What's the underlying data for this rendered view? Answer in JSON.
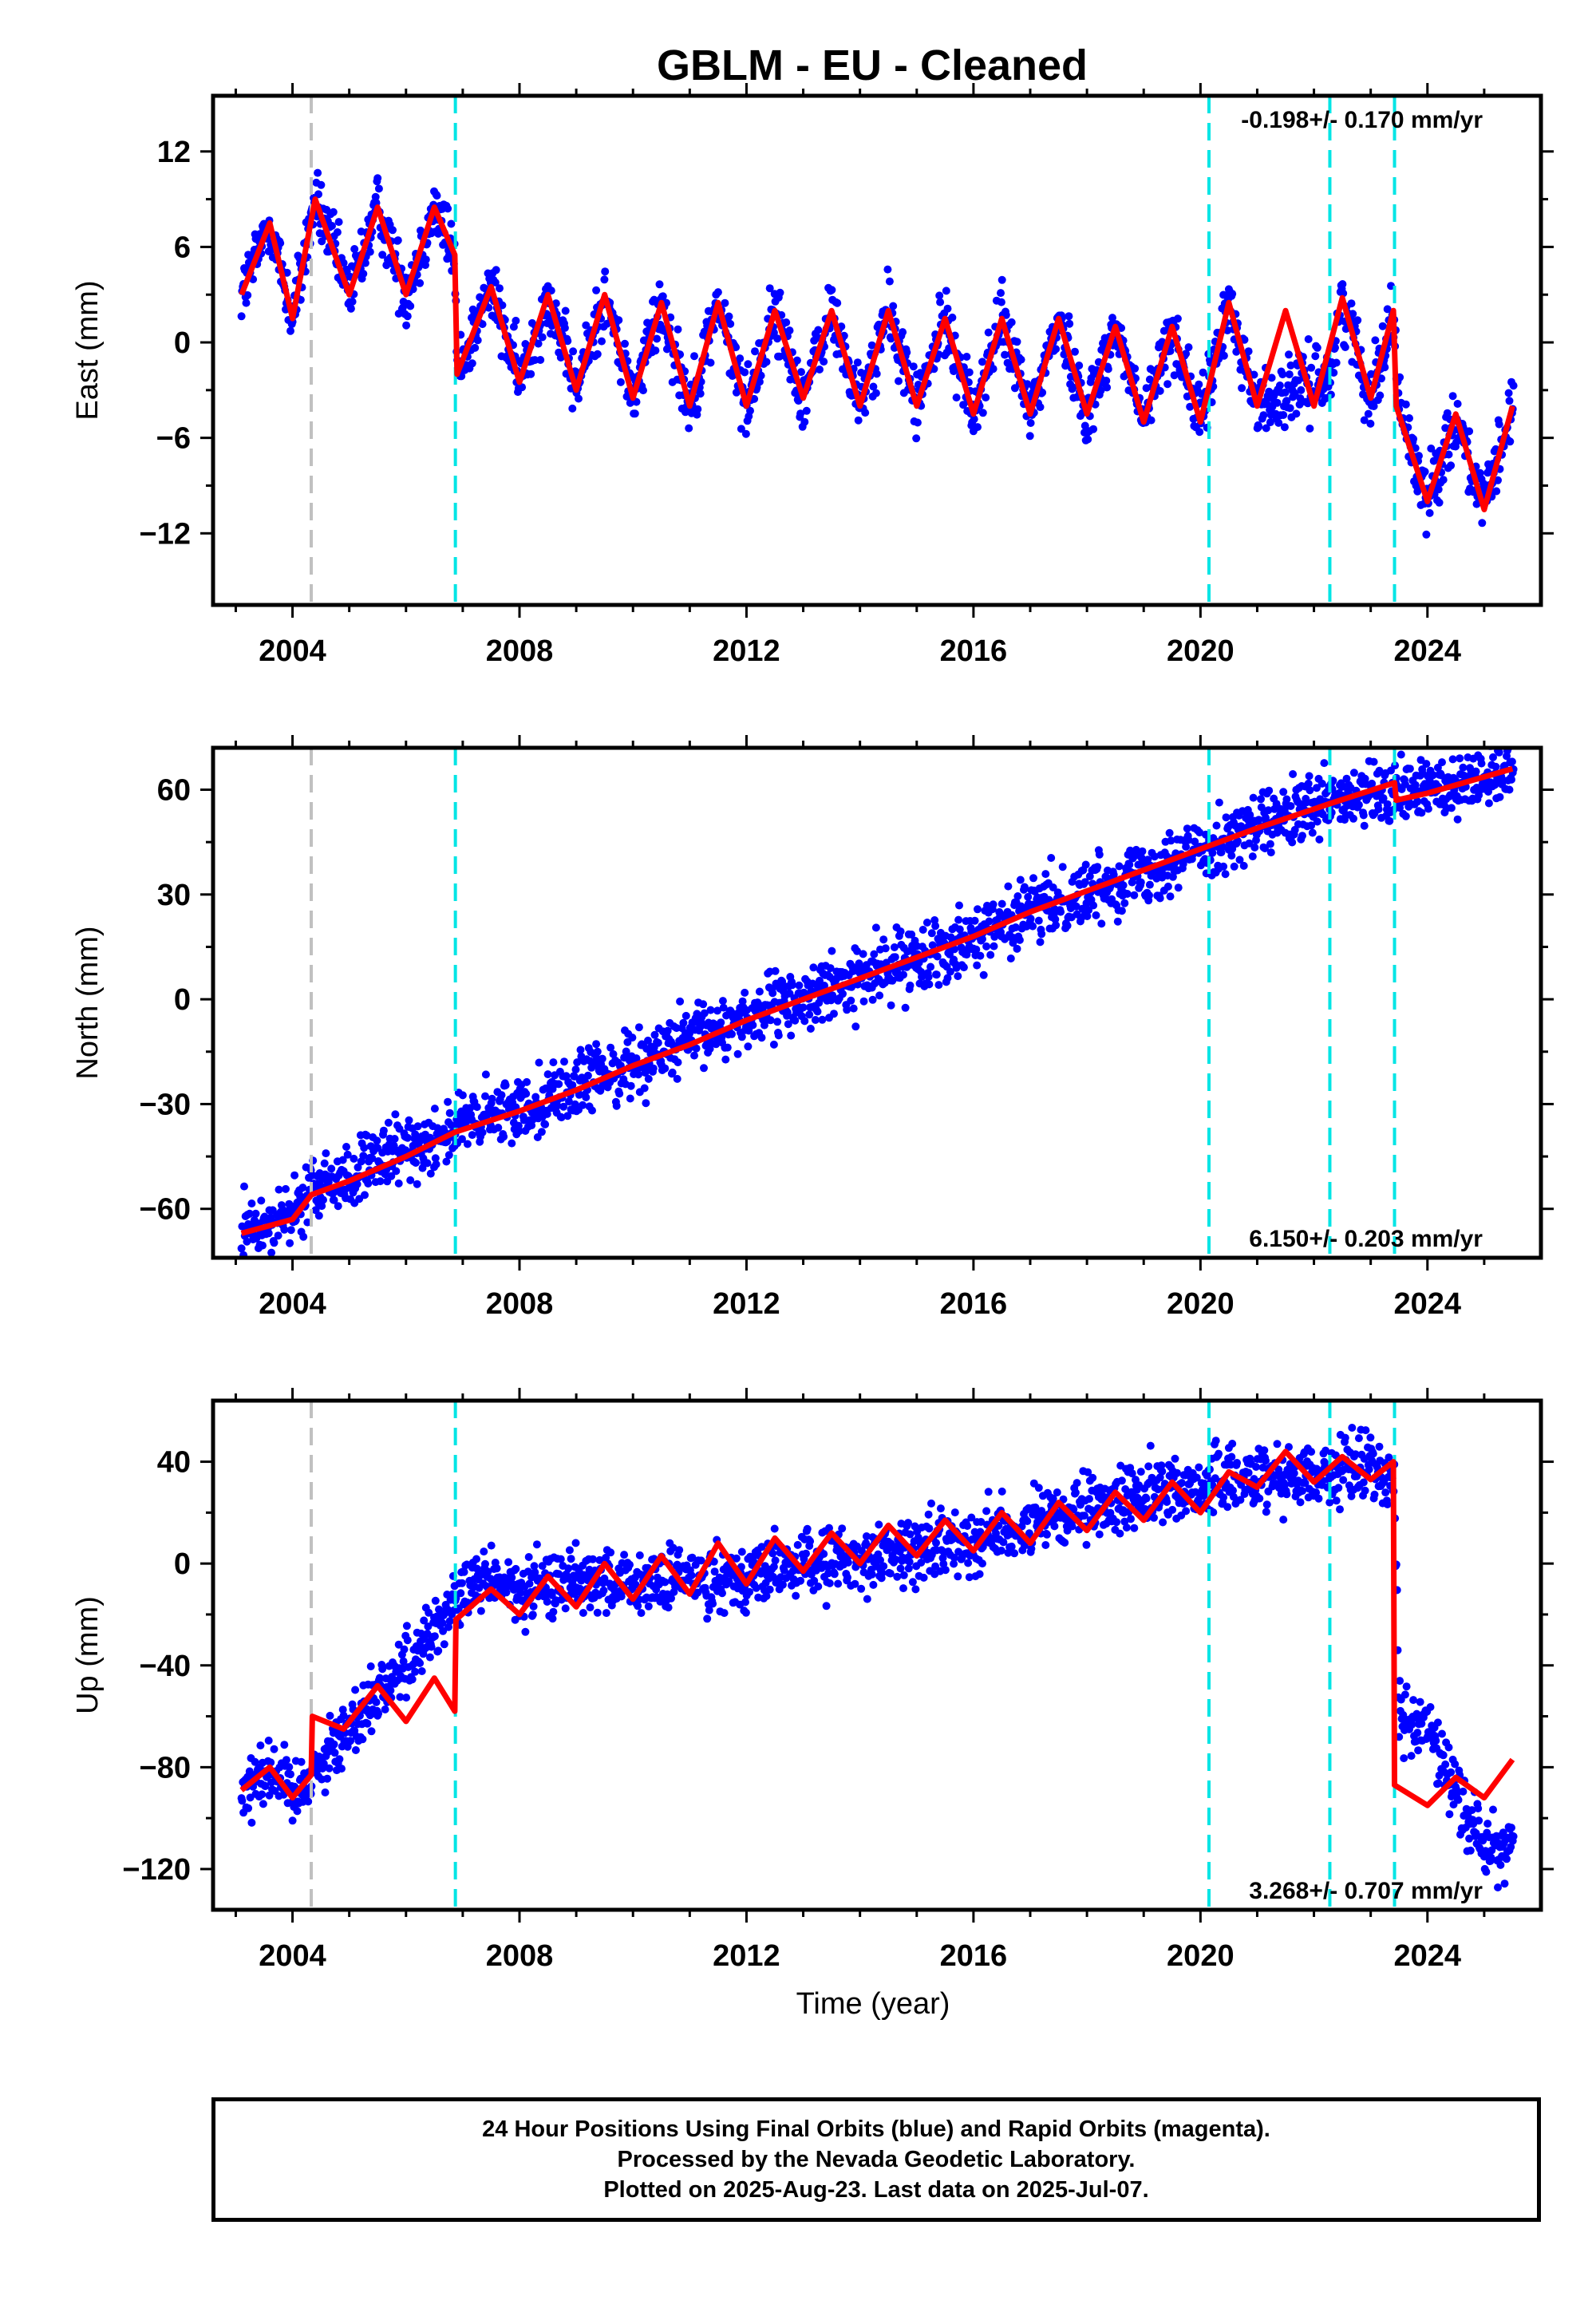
{
  "chart_data": {
    "type": "scatter",
    "title": "GBLM  - EU - Cleaned",
    "xlabel": "Time (year)",
    "xlim": [
      2002.6,
      2026.0
    ],
    "x_ticks": [
      2004,
      2008,
      2012,
      2016,
      2020,
      2024
    ],
    "x_tick_labels": [
      "2004",
      "2008",
      "2012",
      "2016",
      "2020",
      "2024"
    ],
    "vertical_lines": [
      {
        "x": 2004.33,
        "color": "#c0c0c0"
      },
      {
        "x": 2006.87,
        "color": "#00e5e5"
      },
      {
        "x": 2020.15,
        "color": "#00e5e5"
      },
      {
        "x": 2022.28,
        "color": "#00e5e5"
      },
      {
        "x": 2023.42,
        "color": "#00e5e5"
      }
    ],
    "data_span": [
      2003.1,
      2025.52
    ],
    "panels": [
      {
        "component": "east",
        "ylabel": "East (mm)",
        "ylim": [
          -16.5,
          15.5
        ],
        "y_ticks": [
          12,
          6,
          0,
          -6,
          -12
        ],
        "y_tick_labels": [
          "12",
          "6",
          "0",
          "−6",
          "−12"
        ],
        "rate_text": "-0.198+/- 0.170 mm/yr",
        "rate_position": "top-right",
        "series": [
          {
            "name": "Final Orbits",
            "kind": "points",
            "color": "#0000ff",
            "x": [
              2003.1,
              2003.6,
              2004.0,
              2004.4,
              2005.0,
              2005.5,
              2006.0,
              2006.5,
              2006.86,
              2006.9,
              2007.5,
              2008.0,
              2008.5,
              2009.0,
              2009.5,
              2010.0,
              2010.5,
              2011.0,
              2011.5,
              2012.0,
              2012.5,
              2013.0,
              2013.5,
              2014.0,
              2014.5,
              2015.0,
              2015.5,
              2016.0,
              2016.5,
              2017.0,
              2017.5,
              2018.0,
              2018.5,
              2019.0,
              2019.5,
              2020.0,
              2020.5,
              2021.0,
              2022.3,
              2022.5,
              2023.0,
              2023.4,
              2023.5,
              2024.0,
              2024.5,
              2025.0,
              2025.5
            ],
            "y": [
              3.0,
              7.5,
              1.5,
              9.0,
              3.0,
              8.5,
              3.0,
              8.5,
              5.5,
              -2.0,
              3.5,
              -2.5,
              3.0,
              -3.0,
              3.0,
              -3.5,
              2.5,
              -4.0,
              2.5,
              -4.0,
              2.0,
              -3.5,
              2.0,
              -4.0,
              2.0,
              -4.0,
              1.5,
              -4.5,
              1.5,
              -4.5,
              1.5,
              -4.5,
              1.0,
              -5.0,
              1.0,
              -5.0,
              2.5,
              -4.0,
              -2.0,
              2.8,
              -3.5,
              2.0,
              -4.0,
              -10.0,
              -4.5,
              -10.5,
              -4.0
            ]
          },
          {
            "name": "Model",
            "kind": "line",
            "color": "#ff0000",
            "x": [
              2003.1,
              2003.6,
              2004.0,
              2004.4,
              2005.0,
              2005.5,
              2006.0,
              2006.5,
              2006.86,
              2006.9,
              2007.5,
              2008.0,
              2008.5,
              2009.0,
              2009.5,
              2010.0,
              2010.5,
              2011.0,
              2011.5,
              2012.0,
              2012.5,
              2013.0,
              2013.5,
              2014.0,
              2014.5,
              2015.0,
              2015.5,
              2016.0,
              2016.5,
              2017.0,
              2017.5,
              2018.0,
              2018.5,
              2019.0,
              2019.5,
              2020.0,
              2020.5,
              2021.0,
              2021.5,
              2022.0,
              2022.5,
              2023.0,
              2023.4,
              2023.45,
              2024.0,
              2024.5,
              2025.0,
              2025.5
            ],
            "y": [
              3.0,
              7.5,
              1.5,
              9.0,
              3.0,
              8.5,
              3.0,
              8.5,
              5.5,
              -2.0,
              3.5,
              -2.5,
              3.0,
              -3.0,
              3.0,
              -3.5,
              2.5,
              -4.0,
              2.5,
              -4.0,
              2.0,
              -3.5,
              2.0,
              -4.0,
              2.0,
              -4.0,
              1.5,
              -4.5,
              1.5,
              -4.5,
              1.5,
              -4.5,
              1.0,
              -5.0,
              1.0,
              -5.0,
              2.5,
              -4.0,
              2.0,
              -4.0,
              2.8,
              -3.5,
              2.0,
              -4.0,
              -10.0,
              -4.5,
              -10.5,
              -4.0
            ]
          }
        ]
      },
      {
        "component": "north",
        "ylabel": "North (mm)",
        "ylim": [
          -74,
          72
        ],
        "y_ticks": [
          60,
          30,
          0,
          -30,
          -60
        ],
        "y_tick_labels": [
          "60",
          "30",
          "0",
          "−30",
          "−60"
        ],
        "rate_text": "6.150+/- 0.203 mm/yr",
        "rate_position": "bottom-right",
        "series": [
          {
            "name": "Final Orbits",
            "kind": "points",
            "color": "#0000ff",
            "x": [
              2003.1,
              2004.0,
              2004.33,
              2005.0,
              2006.0,
              2006.87,
              2008.0,
              2009.0,
              2010.0,
              2011.0,
              2012.0,
              2013.0,
              2014.0,
              2015.0,
              2016.0,
              2017.0,
              2018.0,
              2019.0,
              2020.0,
              2021.0,
              2022.28,
              2023.42,
              2024.0,
              2025.5
            ],
            "y": [
              -67,
              -62,
              -55,
              -51,
              -43,
              -37,
              -31,
              -25,
              -18,
              -12,
              -5,
              0,
              6,
              12,
              18,
              25,
              31,
              37,
              43,
              49,
              56,
              59,
              60,
              66
            ]
          },
          {
            "name": "Model",
            "kind": "line",
            "color": "#ff0000",
            "x": [
              2003.1,
              2004.0,
              2004.33,
              2005.0,
              2006.0,
              2006.87,
              2008.0,
              2009.0,
              2010.0,
              2011.0,
              2012.0,
              2013.0,
              2014.0,
              2015.0,
              2016.0,
              2017.0,
              2018.0,
              2019.0,
              2020.0,
              2021.0,
              2022.28,
              2023.42,
              2023.45,
              2024.0,
              2025.5
            ],
            "y": [
              -67,
              -63,
              -56,
              -52,
              -45,
              -38,
              -32,
              -26,
              -19,
              -13,
              -6,
              0,
              6,
              12,
              18,
              25,
              31,
              37,
              43,
              49,
              56,
              62,
              57,
              59,
              66
            ]
          }
        ]
      },
      {
        "component": "up",
        "ylabel": "Up (mm)",
        "ylim": [
          -136,
          64
        ],
        "y_ticks": [
          40,
          0,
          -40,
          -80,
          -120
        ],
        "y_tick_labels": [
          "40",
          "0",
          "−40",
          "−80",
          "−120"
        ],
        "rate_text": "3.268+/- 0.707 mm/yr",
        "rate_position": "bottom-right",
        "series": [
          {
            "name": "Final Orbits",
            "kind": "points",
            "color": "#0000ff",
            "x": [
              2003.1,
              2003.6,
              2004.0,
              2004.33,
              2005.0,
              2005.5,
              2006.0,
              2006.5,
              2006.87,
              2007.5,
              2008.0,
              2009.0,
              2010.0,
              2011.0,
              2012.0,
              2013.0,
              2014.0,
              2015.0,
              2016.0,
              2017.0,
              2018.0,
              2019.0,
              2020.0,
              2021.0,
              2022.3,
              2023.0,
              2023.42,
              2023.5,
              2024.0,
              2025.0,
              2025.5
            ],
            "y": [
              -88,
              -80,
              -90,
              -82,
              -65,
              -50,
              -40,
              -25,
              -15,
              -5,
              -12,
              -5,
              -10,
              -5,
              -5,
              0,
              2,
              5,
              10,
              15,
              20,
              28,
              30,
              35,
              35,
              40,
              30,
              -60,
              -65,
              -112,
              -110
            ]
          },
          {
            "name": "Model",
            "kind": "line",
            "color": "#ff0000",
            "x": [
              2003.1,
              2003.6,
              2004.0,
              2004.33,
              2004.35,
              2004.9,
              2005.5,
              2006.0,
              2006.5,
              2006.86,
              2006.88,
              2007.5,
              2008.0,
              2008.5,
              2009.0,
              2009.5,
              2010.0,
              2010.5,
              2011.0,
              2011.5,
              2012.0,
              2012.5,
              2013.0,
              2013.5,
              2014.0,
              2014.5,
              2015.0,
              2015.5,
              2016.0,
              2016.5,
              2017.0,
              2017.5,
              2018.0,
              2018.5,
              2019.0,
              2019.5,
              2020.0,
              2020.5,
              2021.0,
              2021.5,
              2022.0,
              2022.5,
              2023.0,
              2023.4,
              2023.42,
              2024.0,
              2024.5,
              2025.0,
              2025.5
            ],
            "y": [
              -89,
              -80,
              -92,
              -83,
              -60,
              -65,
              -48,
              -62,
              -45,
              -58,
              -22,
              -10,
              -20,
              -5,
              -17,
              0,
              -14,
              3,
              -12,
              8,
              -8,
              10,
              -3,
              12,
              0,
              15,
              3,
              17,
              5,
              20,
              8,
              24,
              13,
              28,
              17,
              32,
              20,
              36,
              30,
              44,
              32,
              42,
              33,
              40,
              -87,
              -95,
              -84,
              -92,
              -77
            ]
          }
        ]
      }
    ]
  },
  "footer": {
    "line1": "24 Hour Positions Using Final Orbits (blue) and Rapid Orbits (magenta).",
    "line2": "Processed by the Nevada Geodetic Laboratory.",
    "line3": "Plotted on 2025-Aug-23. Last data on 2025-Jul-07."
  }
}
